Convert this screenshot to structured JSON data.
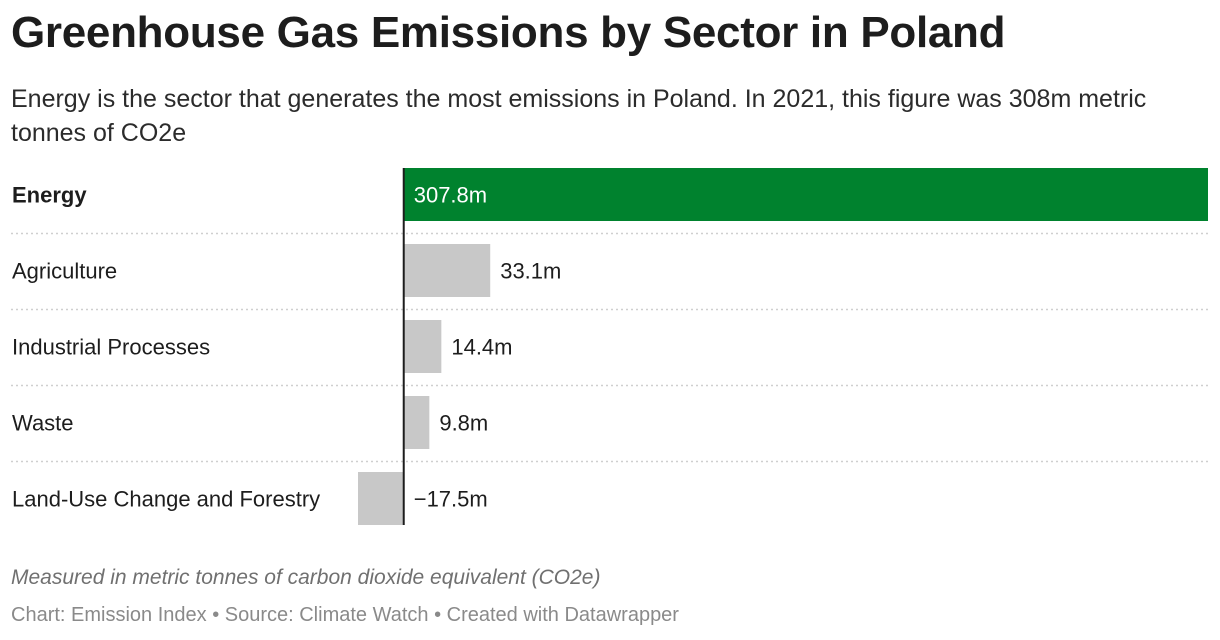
{
  "header": {
    "title": "Greenhouse Gas Emissions by Sector in Poland",
    "subtitle": "Energy is the sector that generates the most emissions in Poland. In 2021, this figure was 308m metric tonnes of CO2e"
  },
  "notes": "Measured in metric tonnes of carbon dioxide equivalent (CO2e)",
  "footer": "Chart: Emission Index • Source: Climate Watch • Created with Datawrapper",
  "colors": {
    "highlight": "#00822e",
    "bar": "#c8c8c8",
    "axis": "#1d1d1d",
    "separator": "#cfcfcf"
  },
  "chart_data": {
    "type": "bar",
    "orientation": "horizontal",
    "categories": [
      "Energy",
      "Agriculture",
      "Industrial Processes",
      "Waste",
      "Land-Use Change and Forestry"
    ],
    "values": [
      307.8,
      33.1,
      14.4,
      9.8,
      -17.5
    ],
    "value_labels": [
      "307.8m",
      "33.1m",
      "14.4m",
      "9.8m",
      "−17.5m"
    ],
    "unit": "m metric tonnes CO2e",
    "highlighted": "Energy",
    "xlim": [
      -17.5,
      307.8
    ],
    "grid": false,
    "legend": "none"
  }
}
